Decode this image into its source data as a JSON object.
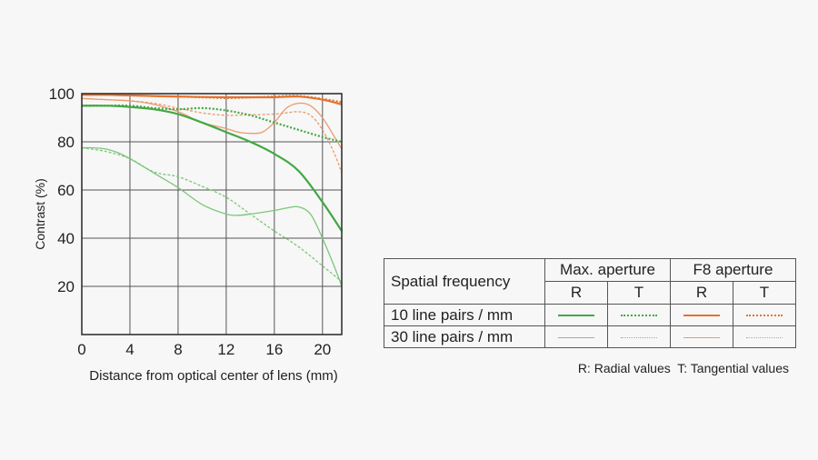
{
  "colors": {
    "green": "#43a843",
    "green_light": "#7cc67a",
    "orange": "#e4732f",
    "orange_light": "#ea9a6c",
    "grid": "#555555"
  },
  "chart_data": {
    "type": "line",
    "title": "",
    "xlabel": "Distance from optical center of lens (mm)",
    "ylabel": "Contrast (%)",
    "xlim": [
      0,
      21.6
    ],
    "ylim": [
      0,
      100
    ],
    "xticks": [
      0,
      4,
      8,
      12,
      16,
      20
    ],
    "yticks": [
      20,
      40,
      60,
      80,
      100
    ],
    "grid": true,
    "series": [
      {
        "label": "10 line pairs / mm, Max. aperture, R",
        "color": "green",
        "width": 2.2,
        "dash": "",
        "x": [
          0,
          2,
          4,
          6,
          8,
          10,
          12,
          14,
          16,
          18,
          20,
          21.6
        ],
        "y": [
          95,
          95,
          94.5,
          93.5,
          91.5,
          88,
          84,
          80,
          75,
          68,
          55,
          43
        ]
      },
      {
        "label": "10 line pairs / mm, Max. aperture, T",
        "color": "green",
        "width": 2.2,
        "dash": "2,2",
        "x": [
          0,
          2,
          4,
          6,
          8,
          10,
          12,
          14,
          16,
          18,
          20,
          21.6
        ],
        "y": [
          95,
          95,
          95,
          94,
          93.5,
          94,
          93,
          91,
          88,
          85,
          82,
          80
        ]
      },
      {
        "label": "10 line pairs / mm, F8 aperture, R",
        "color": "orange",
        "width": 2.2,
        "dash": "",
        "x": [
          0,
          2,
          4,
          6,
          8,
          10,
          12,
          14,
          16,
          18,
          20,
          21.6
        ],
        "y": [
          99.5,
          99.5,
          99.3,
          99,
          98.8,
          98.6,
          98.5,
          98.5,
          98.5,
          98.8,
          97.5,
          95.5
        ]
      },
      {
        "label": "10 line pairs / mm, F8 aperture, T",
        "color": "orange",
        "width": 2.2,
        "dash": "2,2",
        "x": [
          0,
          2,
          4,
          6,
          8,
          10,
          12,
          14,
          16,
          18,
          20,
          21.6
        ],
        "y": [
          99.5,
          99.5,
          99.3,
          99,
          98.8,
          98.5,
          98.2,
          98.4,
          98.8,
          99,
          97.8,
          96.5
        ]
      },
      {
        "label": "30 line pairs / mm, Max. aperture, R",
        "color": "green_light",
        "width": 1.3,
        "dash": "",
        "x": [
          0,
          1,
          2,
          3,
          4,
          6,
          8,
          10,
          12,
          13,
          14,
          16,
          17,
          18,
          19,
          20,
          21,
          21.6
        ],
        "y": [
          77.5,
          77.5,
          77,
          75.5,
          73,
          67,
          61,
          54,
          50,
          49.5,
          50,
          51.5,
          52.5,
          53,
          50,
          40,
          28,
          20
        ]
      },
      {
        "label": "30 line pairs / mm, Max. aperture, T",
        "color": "green_light",
        "width": 1.3,
        "dash": "3,2",
        "x": [
          0,
          2,
          4,
          6,
          8,
          10,
          12,
          14,
          16,
          18,
          20,
          21.6
        ],
        "y": [
          77.5,
          76,
          73,
          67.5,
          65.5,
          61.5,
          57,
          50,
          43,
          36.5,
          28.5,
          22
        ]
      },
      {
        "label": "30 line pairs / mm, F8 aperture, R",
        "color": "orange_light",
        "width": 1.3,
        "dash": "",
        "x": [
          0,
          2,
          4,
          6,
          8,
          10,
          12,
          13,
          14,
          15,
          16,
          17,
          18,
          19,
          20,
          21,
          21.6
        ],
        "y": [
          98,
          97.5,
          97,
          95.5,
          92.5,
          88,
          85.5,
          84,
          83.5,
          84,
          88,
          94,
          96,
          95,
          90,
          82,
          77
        ]
      },
      {
        "label": "30 line pairs / mm, F8 aperture, T",
        "color": "orange_light",
        "width": 1.3,
        "dash": "3,2",
        "x": [
          0,
          2,
          4,
          6,
          8,
          10,
          12,
          14,
          16,
          17,
          18,
          19,
          20,
          21,
          21.6
        ],
        "y": [
          98,
          97.5,
          97,
          96,
          94,
          92,
          91,
          91.2,
          91.5,
          92,
          92.5,
          91,
          85,
          75,
          67
        ]
      }
    ]
  },
  "legend": {
    "spatial_frequency": "Spatial frequency",
    "max_aperture": "Max. aperture",
    "f8_aperture": "F8 aperture",
    "r": "R",
    "t": "T",
    "row_10": "10 line pairs / mm",
    "row_30": "30 line pairs / mm",
    "note_radial": "R: Radial values",
    "note_tangential": "T: Tangential values"
  }
}
